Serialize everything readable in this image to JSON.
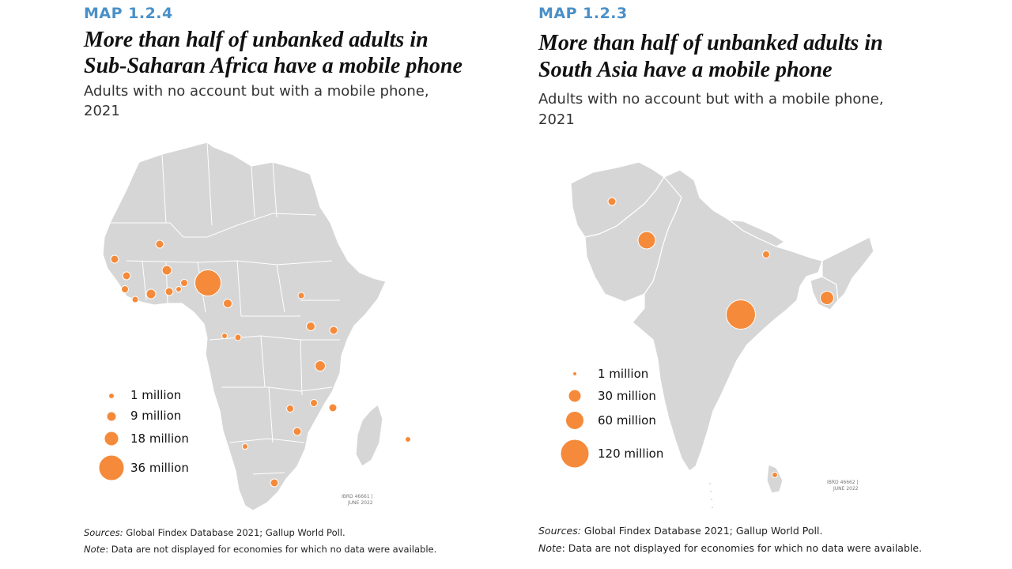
{
  "panels": [
    {
      "label": "MAP 1.2.4",
      "title_line1": "More than half of unbanked adults in",
      "title_line2": "Sub-Saharan Africa have a mobile phone",
      "subtitle_line1": "Adults with no account but with a mobile phone,",
      "subtitle_line2": "2021",
      "legend": [
        {
          "label": "1 million",
          "value": 1
        },
        {
          "label": "9 million",
          "value": 9
        },
        {
          "label": "18 million",
          "value": 18
        },
        {
          "label": "36 million",
          "value": 36
        }
      ],
      "ibrd_line1": "IBRD 46661 |",
      "ibrd_line2": "JUNE 2022",
      "sources_label": "Sources:",
      "sources_text": "Global Findex Database 2021; Gallup World Poll.",
      "note_label": "Note",
      "note_text": ": Data are not displayed for economies for which no data were available."
    },
    {
      "label": "MAP 1.2.3",
      "title_line1": "More than half of unbanked adults in",
      "title_line2": "South Asia have a mobile phone",
      "subtitle_line1": "Adults with no account but with a mobile phone,",
      "subtitle_line2": "2021",
      "legend": [
        {
          "label": "1 million",
          "value": 1
        },
        {
          "label": "30 million",
          "value": 30
        },
        {
          "label": "60 million",
          "value": 60
        },
        {
          "label": "120 million",
          "value": 120
        }
      ],
      "ibrd_line1": "IBRD 46662 |",
      "ibrd_line2": "JUNE 2022",
      "sources_label": "Sources:",
      "sources_text": "Global Findex Database 2021; Gallup World Poll.",
      "note_label": "Note",
      "note_text": ": Data are not displayed for economies for which no data were available."
    }
  ],
  "colors": {
    "label": "#4a90c8",
    "bubble": "#f58a3a",
    "land": "#d6d6d6",
    "border": "#ffffff"
  }
}
